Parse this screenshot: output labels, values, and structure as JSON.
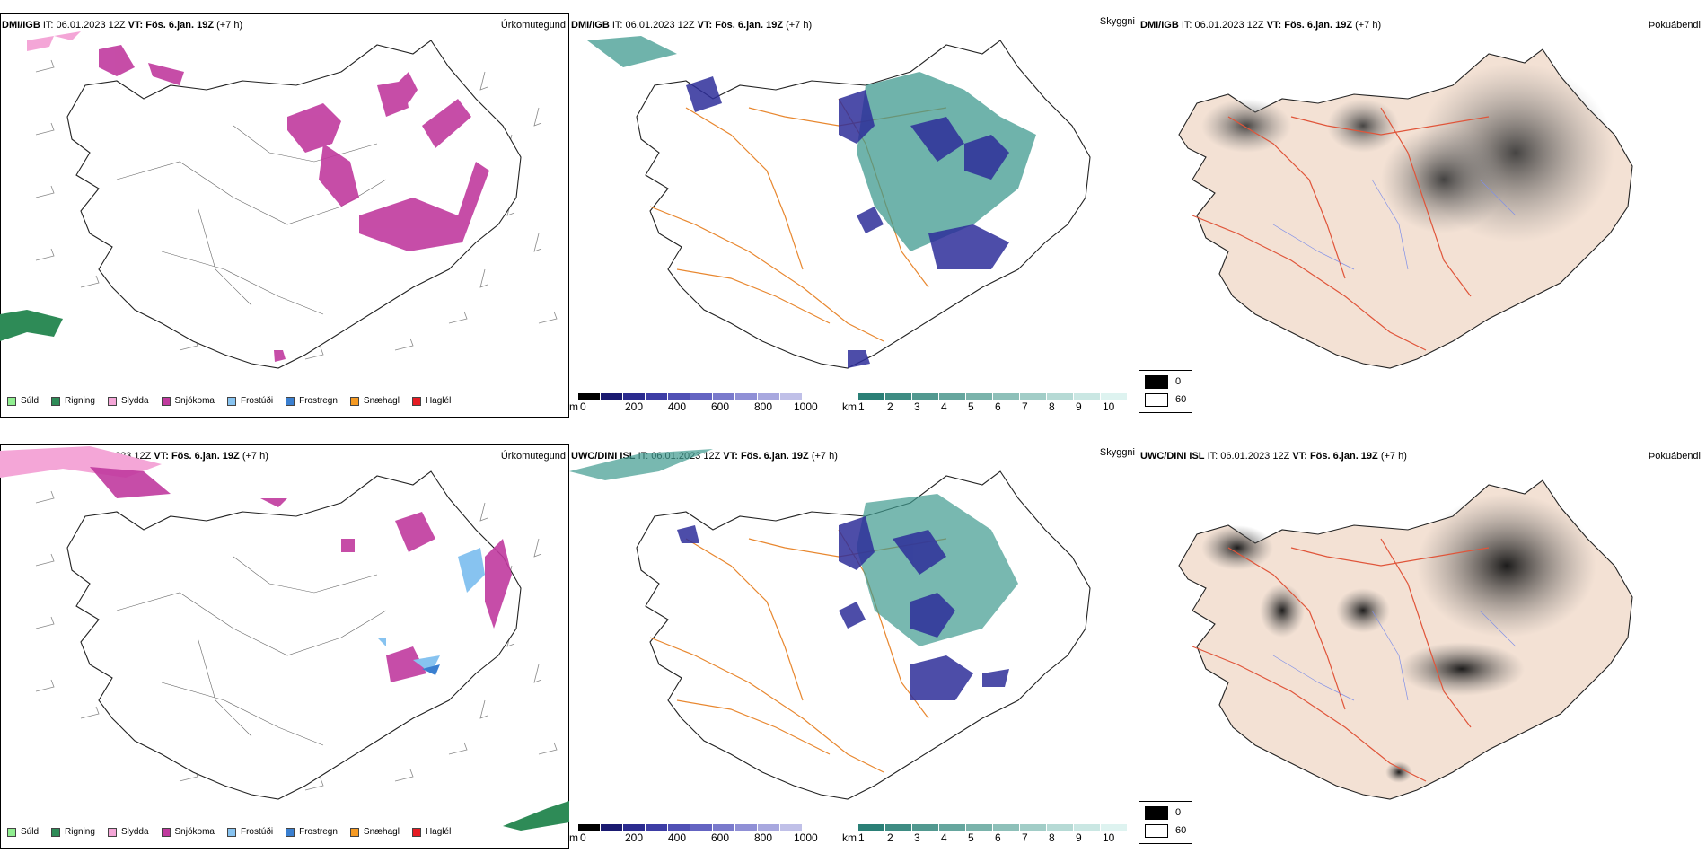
{
  "rows": [
    {
      "model": "DMI/IGB",
      "it_label": "IT:",
      "it_value": "06.01.2023 12Z",
      "vt_label": "VT:",
      "vt_value": "Fös. 6.jan. 19Z",
      "offset": "(+7 h)"
    },
    {
      "model": "UWC/DINI ISL",
      "it_label": "IT:",
      "it_value": "06.01.2023 12Z",
      "vt_label": "VT:",
      "vt_value": "Fös. 6.jan. 19Z",
      "offset": "(+7 h)"
    }
  ],
  "fields": {
    "precip_type": "Úrkomutegund",
    "visibility": "Skyggni",
    "fog": "Þokuábendi"
  },
  "precip_legend": [
    {
      "label": "Súld",
      "color": "#90ee90"
    },
    {
      "label": "Rigning",
      "color": "#2e8b57"
    },
    {
      "label": "Slydda",
      "color": "#f4a6d7"
    },
    {
      "label": "Snjókoma",
      "color": "#c03a9e"
    },
    {
      "label": "Frostúði",
      "color": "#87c3f0"
    },
    {
      "label": "Frostregn",
      "color": "#3a7fd0"
    },
    {
      "label": "Snæhagl",
      "color": "#f59a23"
    },
    {
      "label": "Haglél",
      "color": "#e51c23"
    }
  ],
  "ceiling_scale": {
    "unit": "m",
    "ticks": [
      "0",
      "200",
      "400",
      "600",
      "800",
      "1000"
    ],
    "colors": [
      "#000000",
      "#1a1a70",
      "#2b2b8f",
      "#3d3da5",
      "#5050b5",
      "#6464c2",
      "#7a7acc",
      "#9090d6",
      "#a8a8df",
      "#c0c0e8"
    ]
  },
  "visibility_scale": {
    "unit": "km",
    "ticks": [
      "1",
      "2",
      "3",
      "4",
      "5",
      "6",
      "7",
      "8",
      "9",
      "10"
    ],
    "colors": [
      "#2a7f76",
      "#3e8c83",
      "#529990",
      "#66a69e",
      "#7ab3ab",
      "#8ec0b9",
      "#a2cdc7",
      "#b6dad5",
      "#cae7e3",
      "#def3f0"
    ]
  },
  "fog_legend": {
    "high": "0",
    "low": "60"
  },
  "icons": {
    "wind_barb": "wind-barb-icon"
  }
}
